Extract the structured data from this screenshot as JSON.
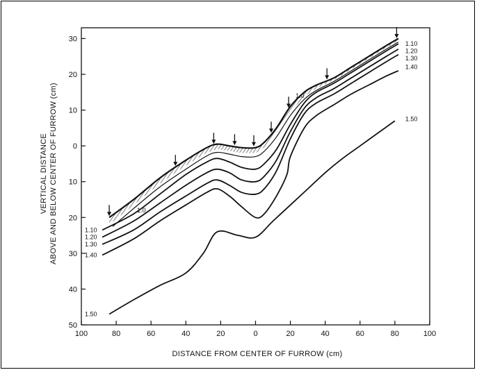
{
  "chart_data": {
    "type": "line",
    "title": "",
    "xlabel": "DISTANCE FROM CENTER OF FURROW (cm)",
    "ylabel_line1": "VERTICAL DISTANCE",
    "ylabel_line2": "ABOVE AND BELOW CENTER OF FURROW (cm)",
    "xlim": [
      -100,
      100
    ],
    "ylim": [
      -50,
      33
    ],
    "x_tick_values": [
      -100,
      -80,
      -60,
      -40,
      -20,
      0,
      20,
      40,
      60,
      80,
      100
    ],
    "x_tick_labels": [
      "100",
      "80",
      "60",
      "40",
      "20",
      "0",
      "20",
      "40",
      "60",
      "80",
      "100"
    ],
    "y_tick_values": [
      30,
      20,
      10,
      0,
      -10,
      -20,
      -30,
      -40,
      -50
    ],
    "y_tick_labels": [
      "30",
      "20",
      "10",
      "0",
      "10",
      "20",
      "30",
      "40",
      "50"
    ],
    "surface": {
      "x": [
        -84,
        -70,
        -55,
        -40,
        -28,
        -22,
        -15,
        -8,
        0,
        5,
        12,
        20,
        28,
        35,
        45,
        55,
        65,
        75,
        82
      ],
      "y": [
        -20,
        -15,
        -9,
        -4,
        -0.5,
        0.5,
        0,
        -0.5,
        -0.5,
        1,
        5,
        11,
        15,
        17,
        19,
        22,
        25,
        28,
        30
      ]
    },
    "arrows_x": [
      -84,
      -46,
      -24,
      -12,
      -1,
      9,
      19,
      41,
      81
    ],
    "series": [
      {
        "name": "1.0",
        "x": [
          -82,
          -70,
          -55,
          -40,
          -28,
          -22,
          -15,
          -8,
          0,
          5,
          12,
          20,
          28,
          35,
          45,
          55,
          65,
          75,
          82
        ],
        "y": [
          -22.5,
          -17.5,
          -11.5,
          -6.5,
          -2.8,
          -1.8,
          -2.3,
          -3,
          -3,
          -1.5,
          2.5,
          8.5,
          13,
          15.5,
          18,
          21,
          24,
          27,
          29
        ]
      },
      {
        "name": "1.10",
        "x": [
          -88,
          -70,
          -55,
          -40,
          -28,
          -22,
          -15,
          -8,
          0,
          5,
          12,
          20,
          28,
          35,
          45,
          55,
          65,
          75,
          82
        ],
        "y": [
          -23.5,
          -19,
          -13.5,
          -8,
          -4.5,
          -3.5,
          -4.5,
          -6,
          -6.5,
          -5,
          -1,
          6,
          12,
          15,
          17.5,
          20.5,
          23.5,
          26.5,
          28.5
        ]
      },
      {
        "name": "1.20",
        "x": [
          -88,
          -70,
          -55,
          -40,
          -28,
          -22,
          -15,
          -8,
          0,
          5,
          12,
          20,
          28,
          35,
          45,
          55,
          65,
          75,
          82
        ],
        "y": [
          -25.5,
          -21,
          -16,
          -11,
          -7.5,
          -6.5,
          -7.5,
          -9.5,
          -10,
          -8.5,
          -4,
          4,
          10.5,
          13.5,
          16,
          19,
          22,
          25,
          27
        ]
      },
      {
        "name": "1.30",
        "x": [
          -88,
          -70,
          -55,
          -40,
          -28,
          -22,
          -15,
          -8,
          0,
          5,
          12,
          20,
          28,
          35,
          45,
          55,
          65,
          75,
          82
        ],
        "y": [
          -27.5,
          -23.5,
          -18.5,
          -14,
          -10.5,
          -9.5,
          -11,
          -13,
          -13.5,
          -12,
          -7,
          2,
          9,
          12,
          14.5,
          17.5,
          20.5,
          23.5,
          25.5
        ]
      },
      {
        "name": "1.40",
        "x": [
          -88,
          -70,
          -55,
          -40,
          -28,
          -22,
          -15,
          -8,
          0,
          5,
          12,
          18,
          20,
          28,
          35,
          45,
          55,
          65,
          75,
          82
        ],
        "y": [
          -30.5,
          -26,
          -21,
          -16.5,
          -13,
          -12,
          -14,
          -17,
          -20,
          -19,
          -14,
          -8,
          -3,
          5,
          8.5,
          11.5,
          14.5,
          17,
          19.5,
          21
        ]
      },
      {
        "name": "1.50",
        "x": [
          -84,
          -70,
          -55,
          -40,
          -30,
          -22,
          -10,
          0,
          10,
          20,
          30,
          40,
          50,
          60,
          70,
          80
        ],
        "y": [
          -47,
          -43,
          -39,
          -35.5,
          -30,
          -24,
          -25,
          -25.5,
          -21,
          -16.5,
          -12,
          -7.5,
          -3.5,
          0,
          3.5,
          7
        ]
      }
    ],
    "contour_labels": [
      {
        "text": "1.0",
        "x": -68,
        "y": -18
      },
      {
        "text": "1.0",
        "x": 23,
        "y": 14
      },
      {
        "text": "1.10",
        "x": -98,
        "y": -23.5
      },
      {
        "text": "1.20",
        "x": -98,
        "y": -25.5
      },
      {
        "text": "1.30",
        "x": -98,
        "y": -27.5
      },
      {
        "text": "1.40",
        "x": -98,
        "y": -30.5
      },
      {
        "text": "1.50",
        "x": -98,
        "y": -47
      },
      {
        "text": "1.10",
        "x": 86,
        "y": 28.5
      },
      {
        "text": "1.20",
        "x": 86,
        "y": 26.5
      },
      {
        "text": "1.30",
        "x": 86,
        "y": 24.5
      },
      {
        "text": "1.40",
        "x": 86,
        "y": 22
      },
      {
        "text": "1.50",
        "x": 86,
        "y": 7.5
      }
    ],
    "grid": false,
    "legend": "none"
  }
}
